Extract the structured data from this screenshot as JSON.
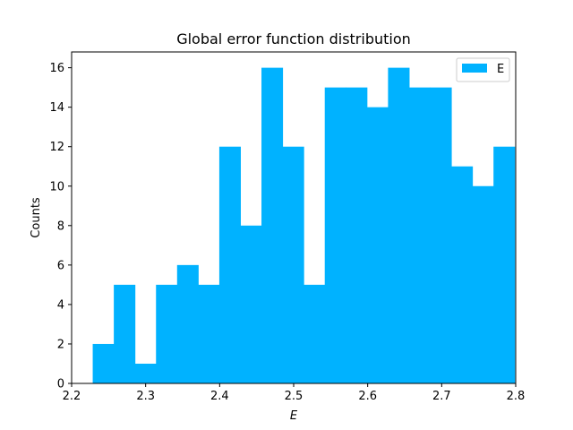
{
  "chart_data": {
    "type": "bar",
    "title": "Global error function distribution",
    "xlabel": "E",
    "ylabel": "Counts",
    "bin_edges": [
      2.2285,
      2.257,
      2.2855,
      2.314,
      2.3425,
      2.371,
      2.3995,
      2.428,
      2.4565,
      2.485,
      2.5135,
      2.542,
      2.5705,
      2.599,
      2.6275,
      2.656,
      2.6845,
      2.713,
      2.7415,
      2.77,
      2.7985
    ],
    "values": [
      2,
      5,
      1,
      5,
      6,
      5,
      12,
      8,
      16,
      12,
      5,
      15,
      15,
      14,
      16,
      15,
      15,
      11,
      10,
      12
    ],
    "xlim": [
      2.2,
      2.8
    ],
    "ylim": [
      0,
      16.8
    ],
    "xticks": [
      "2.2",
      "2.3",
      "2.4",
      "2.5",
      "2.6",
      "2.7",
      "2.8"
    ],
    "xtick_values": [
      2.2,
      2.3,
      2.4,
      2.5,
      2.6,
      2.7,
      2.8
    ],
    "yticks": [
      "0",
      "2",
      "4",
      "6",
      "8",
      "10",
      "12",
      "14",
      "16"
    ],
    "ytick_values": [
      0,
      2,
      4,
      6,
      8,
      10,
      12,
      14,
      16
    ],
    "legend": {
      "position": "top-right",
      "entries": [
        "E"
      ]
    },
    "grid": false,
    "bar_color": "#00b2ff"
  }
}
